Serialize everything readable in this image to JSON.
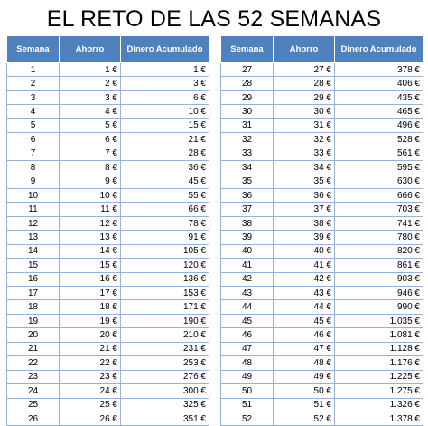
{
  "title": "EL RETO DE LAS 52 SEMANAS",
  "headers": {
    "semana": "Semana",
    "ahorro": "Ahorro",
    "acumulado": "Dinero Acumulado"
  },
  "left_rows": [
    {
      "semana": "1",
      "ahorro": "1 €",
      "acumulado": "1 €"
    },
    {
      "semana": "2",
      "ahorro": "2 €",
      "acumulado": "3 €"
    },
    {
      "semana": "3",
      "ahorro": "3 €",
      "acumulado": "6 €"
    },
    {
      "semana": "4",
      "ahorro": "4 €",
      "acumulado": "10 €"
    },
    {
      "semana": "5",
      "ahorro": "5 €",
      "acumulado": "15 €"
    },
    {
      "semana": "6",
      "ahorro": "6 €",
      "acumulado": "21 €"
    },
    {
      "semana": "7",
      "ahorro": "7 €",
      "acumulado": "28 €"
    },
    {
      "semana": "8",
      "ahorro": "8 €",
      "acumulado": "36 €"
    },
    {
      "semana": "9",
      "ahorro": "9 €",
      "acumulado": "45 €"
    },
    {
      "semana": "10",
      "ahorro": "10 €",
      "acumulado": "55 €"
    },
    {
      "semana": "11",
      "ahorro": "11 €",
      "acumulado": "66 €"
    },
    {
      "semana": "12",
      "ahorro": "12 €",
      "acumulado": "78 €"
    },
    {
      "semana": "13",
      "ahorro": "13 €",
      "acumulado": "91 €"
    },
    {
      "semana": "14",
      "ahorro": "14 €",
      "acumulado": "105 €"
    },
    {
      "semana": "15",
      "ahorro": "15 €",
      "acumulado": "120 €"
    },
    {
      "semana": "16",
      "ahorro": "16 €",
      "acumulado": "136 €"
    },
    {
      "semana": "17",
      "ahorro": "17 €",
      "acumulado": "153 €"
    },
    {
      "semana": "18",
      "ahorro": "18 €",
      "acumulado": "171 €"
    },
    {
      "semana": "19",
      "ahorro": "19 €",
      "acumulado": "190 €"
    },
    {
      "semana": "20",
      "ahorro": "20 €",
      "acumulado": "210 €"
    },
    {
      "semana": "21",
      "ahorro": "21 €",
      "acumulado": "231 €"
    },
    {
      "semana": "22",
      "ahorro": "22 €",
      "acumulado": "253 €"
    },
    {
      "semana": "23",
      "ahorro": "23 €",
      "acumulado": "276 €"
    },
    {
      "semana": "24",
      "ahorro": "24 €",
      "acumulado": "300 €"
    },
    {
      "semana": "25",
      "ahorro": "25 €",
      "acumulado": "325 €"
    },
    {
      "semana": "26",
      "ahorro": "26 €",
      "acumulado": "351 €"
    }
  ],
  "right_rows": [
    {
      "semana": "27",
      "ahorro": "27 €",
      "acumulado": "378 €"
    },
    {
      "semana": "28",
      "ahorro": "28 €",
      "acumulado": "406 €"
    },
    {
      "semana": "29",
      "ahorro": "29 €",
      "acumulado": "435 €"
    },
    {
      "semana": "30",
      "ahorro": "30 €",
      "acumulado": "465 €"
    },
    {
      "semana": "31",
      "ahorro": "31 €",
      "acumulado": "496 €"
    },
    {
      "semana": "32",
      "ahorro": "32 €",
      "acumulado": "528 €"
    },
    {
      "semana": "33",
      "ahorro": "33 €",
      "acumulado": "561 €"
    },
    {
      "semana": "34",
      "ahorro": "34 €",
      "acumulado": "595 €"
    },
    {
      "semana": "35",
      "ahorro": "35 €",
      "acumulado": "630 €"
    },
    {
      "semana": "36",
      "ahorro": "36 €",
      "acumulado": "666 €"
    },
    {
      "semana": "37",
      "ahorro": "37 €",
      "acumulado": "703 €"
    },
    {
      "semana": "38",
      "ahorro": "38 €",
      "acumulado": "741 €"
    },
    {
      "semana": "39",
      "ahorro": "39 €",
      "acumulado": "780 €"
    },
    {
      "semana": "40",
      "ahorro": "40 €",
      "acumulado": "820 €"
    },
    {
      "semana": "41",
      "ahorro": "41 €",
      "acumulado": "861 €"
    },
    {
      "semana": "42",
      "ahorro": "42 €",
      "acumulado": "903 €"
    },
    {
      "semana": "43",
      "ahorro": "43 €",
      "acumulado": "946 €"
    },
    {
      "semana": "44",
      "ahorro": "44 €",
      "acumulado": "990 €"
    },
    {
      "semana": "45",
      "ahorro": "45 €",
      "acumulado": "1.035 €"
    },
    {
      "semana": "46",
      "ahorro": "46 €",
      "acumulado": "1.081 €"
    },
    {
      "semana": "47",
      "ahorro": "47 €",
      "acumulado": "1.128 €"
    },
    {
      "semana": "48",
      "ahorro": "48 €",
      "acumulado": "1.176 €"
    },
    {
      "semana": "49",
      "ahorro": "49 €",
      "acumulado": "1.225 €"
    },
    {
      "semana": "50",
      "ahorro": "50 €",
      "acumulado": "1.275 €"
    },
    {
      "semana": "51",
      "ahorro": "51 €",
      "acumulado": "1.326 €"
    },
    {
      "semana": "52",
      "ahorro": "52 €",
      "acumulado": "1.378 €"
    }
  ],
  "colors": {
    "header_bg": "#4f81bd",
    "header_text": "#ffffff",
    "grid_line": "#95b3d7"
  }
}
